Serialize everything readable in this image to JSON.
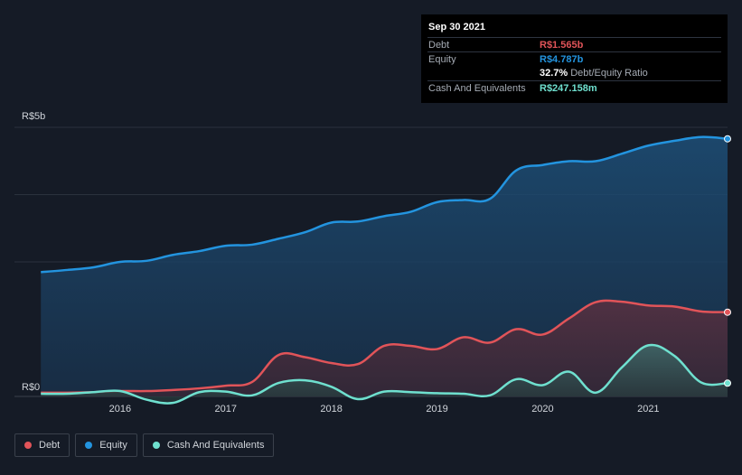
{
  "chart_data": {
    "type": "area",
    "currency_prefix": "R$",
    "y_axis": {
      "top_label": "R$5b",
      "bottom_label": "R$0",
      "ylim": [
        0,
        5.0
      ]
    },
    "x_axis": {
      "ticks": [
        "2016",
        "2017",
        "2018",
        "2019",
        "2020",
        "2021"
      ],
      "tick_values": [
        2016,
        2017,
        2018,
        2019,
        2020,
        2021
      ],
      "xlim": [
        2015.0,
        2021.75
      ]
    },
    "series": [
      {
        "name": "Debt",
        "key": "debt",
        "color": "#e15459",
        "x": [
          2015.25,
          2015.5,
          2015.75,
          2016.0,
          2016.25,
          2016.5,
          2016.75,
          2017.0,
          2017.25,
          2017.5,
          2017.75,
          2018.0,
          2018.25,
          2018.5,
          2018.75,
          2019.0,
          2019.25,
          2019.5,
          2019.75,
          2020.0,
          2020.25,
          2020.5,
          2020.75,
          2021.0,
          2021.25,
          2021.5,
          2021.75
        ],
        "values": [
          0.07,
          0.07,
          0.08,
          0.1,
          0.1,
          0.12,
          0.15,
          0.2,
          0.27,
          0.77,
          0.73,
          0.62,
          0.6,
          0.94,
          0.94,
          0.88,
          1.1,
          1.0,
          1.25,
          1.15,
          1.45,
          1.75,
          1.76,
          1.69,
          1.67,
          1.58,
          1.565
        ]
      },
      {
        "name": "Equity",
        "key": "equity",
        "color": "#2394df",
        "x": [
          2015.25,
          2015.5,
          2015.75,
          2016.0,
          2016.25,
          2016.5,
          2016.75,
          2017.0,
          2017.25,
          2017.5,
          2017.75,
          2018.0,
          2018.25,
          2018.5,
          2018.75,
          2019.0,
          2019.25,
          2019.5,
          2019.75,
          2020.0,
          2020.25,
          2020.5,
          2020.75,
          2021.0,
          2021.25,
          2021.5,
          2021.75
        ],
        "values": [
          2.31,
          2.35,
          2.4,
          2.5,
          2.52,
          2.63,
          2.7,
          2.8,
          2.82,
          2.93,
          3.05,
          3.23,
          3.25,
          3.35,
          3.43,
          3.61,
          3.65,
          3.67,
          4.2,
          4.3,
          4.37,
          4.37,
          4.51,
          4.66,
          4.75,
          4.82,
          4.787
        ]
      },
      {
        "name": "Cash And Equivalents",
        "key": "cash",
        "color": "#6fe0cf",
        "x": [
          2015.25,
          2015.5,
          2015.75,
          2016.0,
          2016.25,
          2016.5,
          2016.75,
          2017.0,
          2017.25,
          2017.5,
          2017.75,
          2018.0,
          2018.25,
          2018.5,
          2018.75,
          2019.0,
          2019.25,
          2019.5,
          2019.75,
          2020.0,
          2020.25,
          2020.5,
          2020.75,
          2021.0,
          2021.25,
          2021.5,
          2021.75
        ],
        "values": [
          0.05,
          0.05,
          0.08,
          0.1,
          -0.06,
          -0.12,
          0.08,
          0.09,
          0.02,
          0.25,
          0.3,
          0.18,
          -0.05,
          0.09,
          0.08,
          0.06,
          0.05,
          0.02,
          0.32,
          0.21,
          0.46,
          0.07,
          0.54,
          0.95,
          0.75,
          0.26,
          0.247
        ]
      }
    ],
    "tooltip": {
      "date": "Sep 30 2021",
      "rows": [
        {
          "label": "Debt",
          "value": "R$1.565b",
          "color": "#e15459"
        },
        {
          "label": "Equity",
          "value": "R$4.787b",
          "color": "#2394df"
        },
        {
          "label": "",
          "value": "32.7%",
          "suffix": "Debt/Equity Ratio",
          "color": "#ffffff"
        },
        {
          "label": "Cash And Equivalents",
          "value": "R$247.158m",
          "color": "#6fe0cf"
        }
      ]
    },
    "legend": [
      {
        "label": "Debt",
        "color": "#e15459"
      },
      {
        "label": "Equity",
        "color": "#2394df"
      },
      {
        "label": "Cash And Equivalents",
        "color": "#6fe0cf"
      }
    ]
  }
}
